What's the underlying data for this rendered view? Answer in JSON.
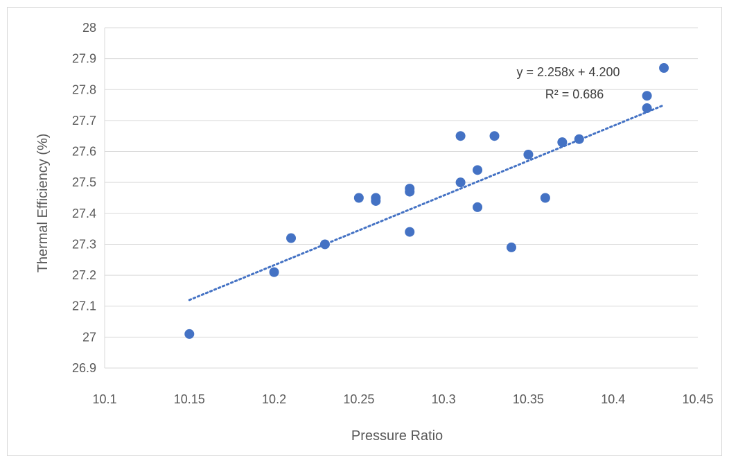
{
  "chart_data": {
    "type": "scatter",
    "title": "",
    "xlabel": "Pressure Ratio",
    "ylabel": "Thermal Efficiency (%)",
    "xlim": [
      10.1,
      10.45
    ],
    "ylim": [
      26.9,
      28
    ],
    "x_ticks": [
      "10.1",
      "10.15",
      "10.2",
      "10.25",
      "10.3",
      "10.35",
      "10.4",
      "10.45"
    ],
    "y_ticks": [
      "26.9",
      "27",
      "27.1",
      "27.2",
      "27.3",
      "27.4",
      "27.5",
      "27.6",
      "27.7",
      "27.8",
      "27.9",
      "28"
    ],
    "grid": "horizontal",
    "marker_color": "#4472c4",
    "trendline_color": "#4472c4",
    "points": [
      {
        "x": 10.15,
        "y": 27.01
      },
      {
        "x": 10.2,
        "y": 27.21
      },
      {
        "x": 10.21,
        "y": 27.32
      },
      {
        "x": 10.23,
        "y": 27.3
      },
      {
        "x": 10.25,
        "y": 27.45
      },
      {
        "x": 10.26,
        "y": 27.45
      },
      {
        "x": 10.26,
        "y": 27.44
      },
      {
        "x": 10.28,
        "y": 27.48
      },
      {
        "x": 10.28,
        "y": 27.47
      },
      {
        "x": 10.28,
        "y": 27.34
      },
      {
        "x": 10.31,
        "y": 27.65
      },
      {
        "x": 10.31,
        "y": 27.5
      },
      {
        "x": 10.32,
        "y": 27.54
      },
      {
        "x": 10.32,
        "y": 27.42
      },
      {
        "x": 10.33,
        "y": 27.65
      },
      {
        "x": 10.34,
        "y": 27.29
      },
      {
        "x": 10.35,
        "y": 27.59
      },
      {
        "x": 10.36,
        "y": 27.45
      },
      {
        "x": 10.37,
        "y": 27.63
      },
      {
        "x": 10.38,
        "y": 27.64
      },
      {
        "x": 10.42,
        "y": 27.78
      },
      {
        "x": 10.42,
        "y": 27.74
      },
      {
        "x": 10.43,
        "y": 27.87
      }
    ],
    "trendline": {
      "type": "linear",
      "slope": 2.258,
      "intercept": 4.2,
      "x_range": [
        10.15,
        10.43
      ],
      "y_range": [
        27.12,
        27.75
      ],
      "equation_label": "y = 2.258x + 4.200",
      "r2_label": "R² = 0.686"
    }
  }
}
